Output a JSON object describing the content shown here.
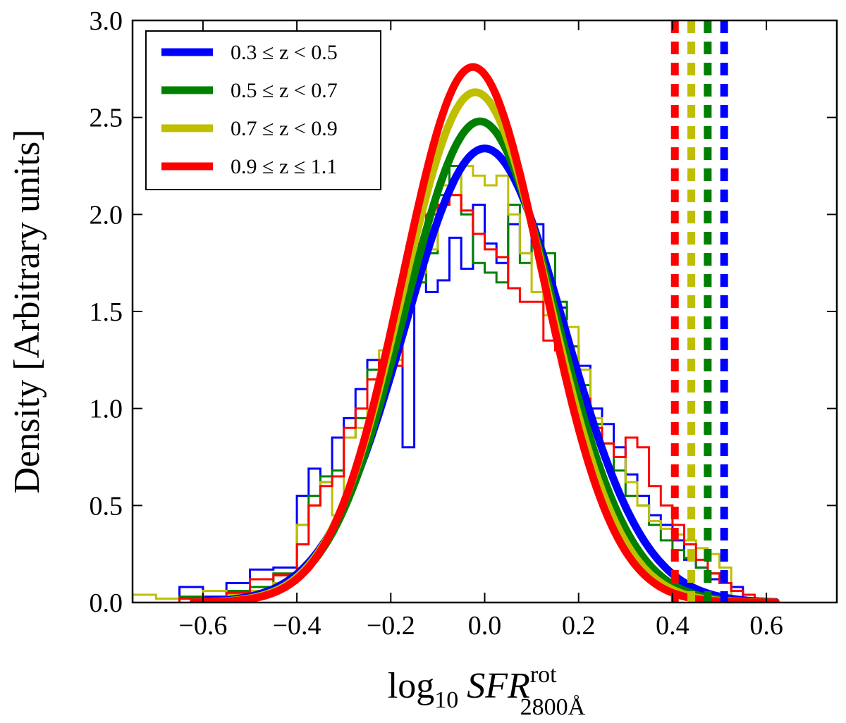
{
  "chart_data": {
    "type": "line",
    "xlabel": {
      "base": "log",
      "base_sub": "10",
      "var": "SFR",
      "sup": "rot",
      "sub": "2800Å"
    },
    "ylabel": "Density [Arbitrary units]",
    "xlim": [
      -0.75,
      0.75
    ],
    "ylim": [
      0.0,
      3.0
    ],
    "xticks": [
      -0.6,
      -0.4,
      -0.2,
      0.0,
      0.2,
      0.4,
      0.6
    ],
    "xtick_labels": [
      "−0.6",
      "−0.4",
      "−0.2",
      "0.0",
      "0.2",
      "0.4",
      "0.6"
    ],
    "yticks": [
      0.0,
      0.5,
      1.0,
      1.5,
      2.0,
      2.5,
      3.0
    ],
    "ytick_labels": [
      "0.0",
      "0.5",
      "1.0",
      "1.5",
      "2.0",
      "2.5",
      "3.0"
    ],
    "grid": false,
    "legend_position": "top-left",
    "series": [
      {
        "name": "0.3 ≤ z < 0.5",
        "color": "#0000ff",
        "gaussian": {
          "mu": 0.0,
          "sigma": 0.17,
          "peak": 2.34
        },
        "threshold_x": 0.51,
        "hist_edges": [
          -0.65,
          -0.6,
          -0.55,
          -0.5,
          -0.45,
          -0.4,
          -0.375,
          -0.35,
          -0.325,
          -0.3,
          -0.275,
          -0.25,
          -0.225,
          -0.2,
          -0.175,
          -0.15,
          -0.125,
          -0.1,
          -0.075,
          -0.05,
          -0.025,
          0.0,
          0.025,
          0.05,
          0.075,
          0.1,
          0.125,
          0.15,
          0.175,
          0.2,
          0.225,
          0.25,
          0.275,
          0.3,
          0.325,
          0.35,
          0.375,
          0.4,
          0.425,
          0.45,
          0.475,
          0.5,
          0.525,
          0.55,
          0.575
        ],
        "hist_values": [
          0.08,
          0.03,
          0.1,
          0.17,
          0.18,
          0.55,
          0.69,
          0.62,
          0.85,
          0.95,
          1.1,
          1.25,
          1.15,
          1.4,
          0.8,
          1.8,
          1.6,
          1.66,
          1.88,
          1.72,
          2.05,
          1.85,
          1.75,
          1.95,
          1.8,
          1.95,
          1.62,
          1.52,
          1.32,
          1.22,
          1.0,
          0.92,
          0.8,
          0.66,
          0.55,
          0.45,
          0.4,
          0.32,
          0.22,
          0.18,
          0.12,
          0.1,
          0.08,
          0.0
        ]
      },
      {
        "name": "0.5 ≤ z < 0.7",
        "color": "#008000",
        "gaussian": {
          "mu": -0.01,
          "sigma": 0.16,
          "peak": 2.48
        },
        "threshold_x": 0.475,
        "hist_edges": [
          -0.65,
          -0.6,
          -0.55,
          -0.5,
          -0.45,
          -0.4,
          -0.375,
          -0.35,
          -0.325,
          -0.3,
          -0.275,
          -0.25,
          -0.225,
          -0.2,
          -0.175,
          -0.15,
          -0.125,
          -0.1,
          -0.075,
          -0.05,
          -0.025,
          0.0,
          0.025,
          0.05,
          0.075,
          0.1,
          0.125,
          0.15,
          0.175,
          0.2,
          0.225,
          0.25,
          0.275,
          0.3,
          0.325,
          0.35,
          0.375,
          0.4,
          0.425,
          0.45,
          0.475,
          0.5,
          0.525
        ],
        "hist_values": [
          0.03,
          0.02,
          0.06,
          0.08,
          0.15,
          0.4,
          0.55,
          0.65,
          0.68,
          0.85,
          0.95,
          1.2,
          1.15,
          1.45,
          1.6,
          1.65,
          1.8,
          2.1,
          2.25,
          2.0,
          1.75,
          1.7,
          1.65,
          2.05,
          1.75,
          1.85,
          1.8,
          1.55,
          1.32,
          1.12,
          0.92,
          0.82,
          0.68,
          0.55,
          0.5,
          0.4,
          0.32,
          0.27,
          0.23,
          0.18,
          0.15,
          0.1,
          0.0
        ]
      },
      {
        "name": "0.7 ≤ z < 0.9",
        "color": "#bfbf00",
        "gaussian": {
          "mu": -0.02,
          "sigma": 0.155,
          "peak": 2.63
        },
        "threshold_x": 0.44,
        "hist_edges": [
          -0.75,
          -0.7,
          -0.65,
          -0.6,
          -0.55,
          -0.5,
          -0.45,
          -0.4,
          -0.375,
          -0.35,
          -0.325,
          -0.3,
          -0.275,
          -0.25,
          -0.225,
          -0.2,
          -0.175,
          -0.15,
          -0.125,
          -0.1,
          -0.075,
          -0.05,
          -0.025,
          0.0,
          0.025,
          0.05,
          0.075,
          0.1,
          0.125,
          0.15,
          0.175,
          0.2,
          0.225,
          0.25,
          0.275,
          0.3,
          0.325,
          0.35,
          0.375,
          0.4,
          0.425,
          0.45,
          0.475,
          0.5,
          0.525
        ],
        "hist_values": [
          0.04,
          0.02,
          0.02,
          0.06,
          0.04,
          0.06,
          0.1,
          0.4,
          0.5,
          0.62,
          0.45,
          0.85,
          0.9,
          1.15,
          1.3,
          1.25,
          1.65,
          1.7,
          1.82,
          2.15,
          2.1,
          2.25,
          2.2,
          2.15,
          2.2,
          2.0,
          1.8,
          1.6,
          1.48,
          1.45,
          1.42,
          1.2,
          0.95,
          0.82,
          0.75,
          0.62,
          0.5,
          0.42,
          0.38,
          0.35,
          0.32,
          0.28,
          0.25,
          0.18,
          0.0
        ]
      },
      {
        "name": "0.9 ≤ z ≤ 1.1",
        "color": "#ff0000",
        "gaussian": {
          "mu": -0.025,
          "sigma": 0.15,
          "peak": 2.76
        },
        "threshold_x": 0.405,
        "hist_edges": [
          -0.65,
          -0.6,
          -0.55,
          -0.5,
          -0.45,
          -0.4,
          -0.375,
          -0.35,
          -0.325,
          -0.3,
          -0.275,
          -0.25,
          -0.225,
          -0.2,
          -0.175,
          -0.15,
          -0.125,
          -0.1,
          -0.075,
          -0.05,
          -0.025,
          0.0,
          0.025,
          0.05,
          0.075,
          0.1,
          0.125,
          0.15,
          0.175,
          0.2,
          0.225,
          0.25,
          0.275,
          0.3,
          0.325,
          0.35,
          0.375,
          0.4,
          0.425,
          0.45,
          0.475,
          0.5,
          0.525,
          0.55,
          0.575
        ],
        "hist_values": [
          0.02,
          0.02,
          0.05,
          0.12,
          0.14,
          0.3,
          0.5,
          0.6,
          0.65,
          0.9,
          1.0,
          1.15,
          1.25,
          1.22,
          1.55,
          1.85,
          2.0,
          2.05,
          2.1,
          2.02,
          1.9,
          1.82,
          1.78,
          1.62,
          1.55,
          1.55,
          1.35,
          1.3,
          1.22,
          1.05,
          0.9,
          0.82,
          0.75,
          0.85,
          0.8,
          0.6,
          0.5,
          0.4,
          0.3,
          0.22,
          0.15,
          0.1,
          0.06,
          0.04,
          0.0
        ]
      }
    ]
  }
}
